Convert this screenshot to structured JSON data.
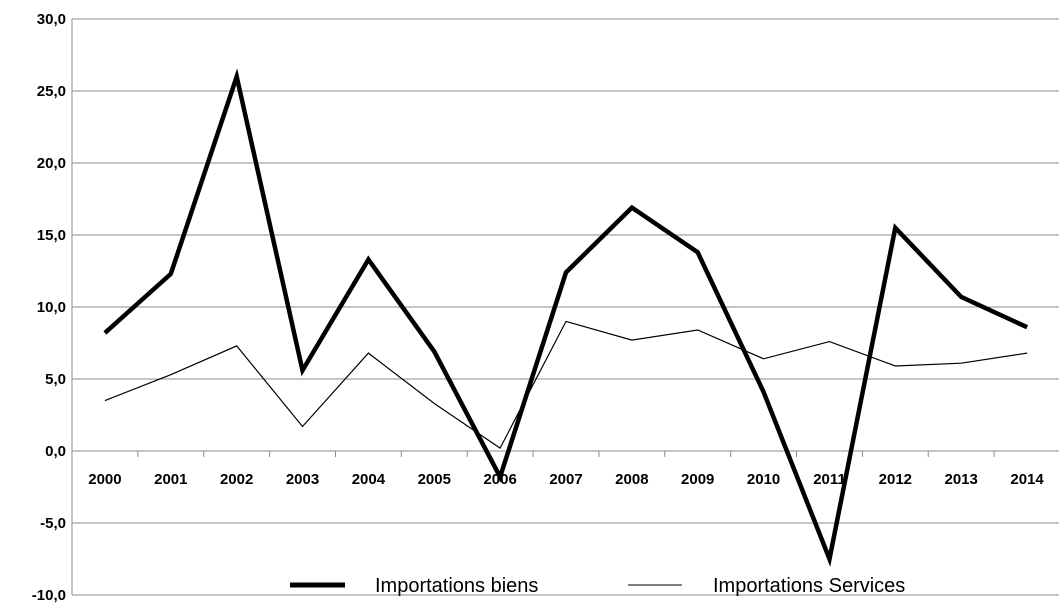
{
  "chart_data": {
    "type": "line",
    "categories": [
      "2000",
      "2001",
      "2002",
      "2003",
      "2004",
      "2005",
      "2006",
      "2007",
      "2008",
      "2009",
      "2010",
      "2011",
      "2012",
      "2013",
      "2014"
    ],
    "series": [
      {
        "name": "Importations biens",
        "color": "#000000",
        "style": "thick",
        "values": [
          8.2,
          12.3,
          26.0,
          5.6,
          13.3,
          6.9,
          -1.8,
          12.4,
          16.9,
          13.8,
          4.1,
          -7.5,
          15.5,
          10.7,
          8.6
        ]
      },
      {
        "name": "Importations Services",
        "color": "#000000",
        "style": "thin",
        "values": [
          3.5,
          5.3,
          7.3,
          1.7,
          6.8,
          3.3,
          0.2,
          9.0,
          7.7,
          8.4,
          6.4,
          7.6,
          5.9,
          6.1,
          6.8
        ]
      }
    ],
    "y_ticks": [
      "30,0",
      "25,0",
      "20,0",
      "15,0",
      "10,0",
      "5,0",
      "0,0",
      "-5,0",
      "-10,0"
    ],
    "ylim": [
      -10,
      30
    ],
    "grid": true,
    "legend_position": "bottom",
    "title": "",
    "xlabel": "",
    "ylabel": ""
  }
}
